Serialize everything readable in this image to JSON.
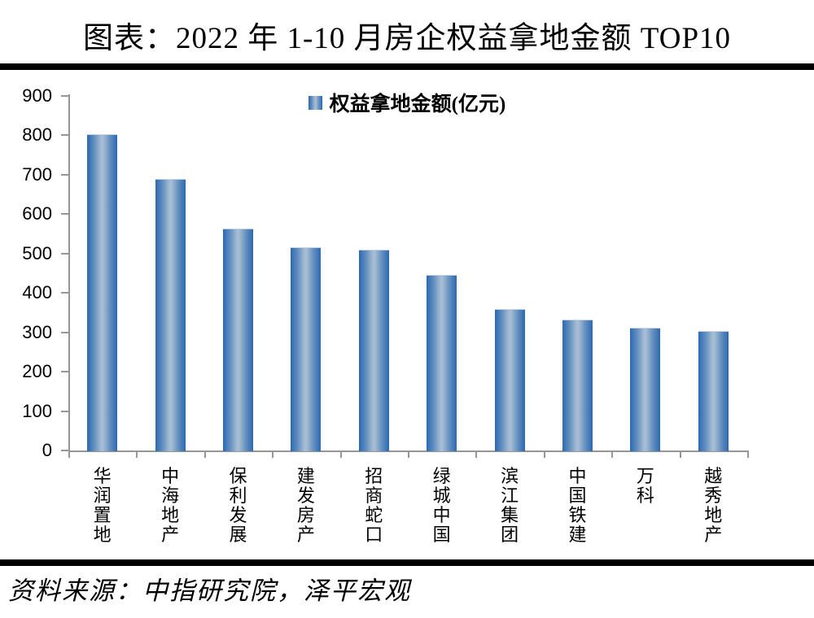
{
  "title": "图表：2022 年 1-10 月房企权益拿地金额 TOP10",
  "source": "资料来源：中指研究院，泽平宏观",
  "chart_data": {
    "type": "bar",
    "title": "图表：2022 年 1-10 月房企权益拿地金额 TOP10",
    "legend": "权益拿地金额(亿元)",
    "legend_position": "top-center",
    "categories": [
      "华润置地",
      "中海地产",
      "保利发展",
      "建发房产",
      "招商蛇口",
      "绿城中国",
      "滨江集团",
      "中国铁建",
      "万科",
      "越秀地产"
    ],
    "values": [
      803,
      690,
      563,
      516,
      510,
      446,
      360,
      332,
      312,
      303
    ],
    "xlabel": "",
    "ylabel": "",
    "ylim": [
      0,
      900
    ],
    "yticks": [
      0,
      100,
      200,
      300,
      400,
      500,
      600,
      700,
      800,
      900
    ],
    "grid": false,
    "colors": {
      "bar_edge": "#2A69B3",
      "bar_mid": "#A6BCD2",
      "axis": "#969696",
      "divider": "#000000",
      "text": "#000000"
    }
  }
}
